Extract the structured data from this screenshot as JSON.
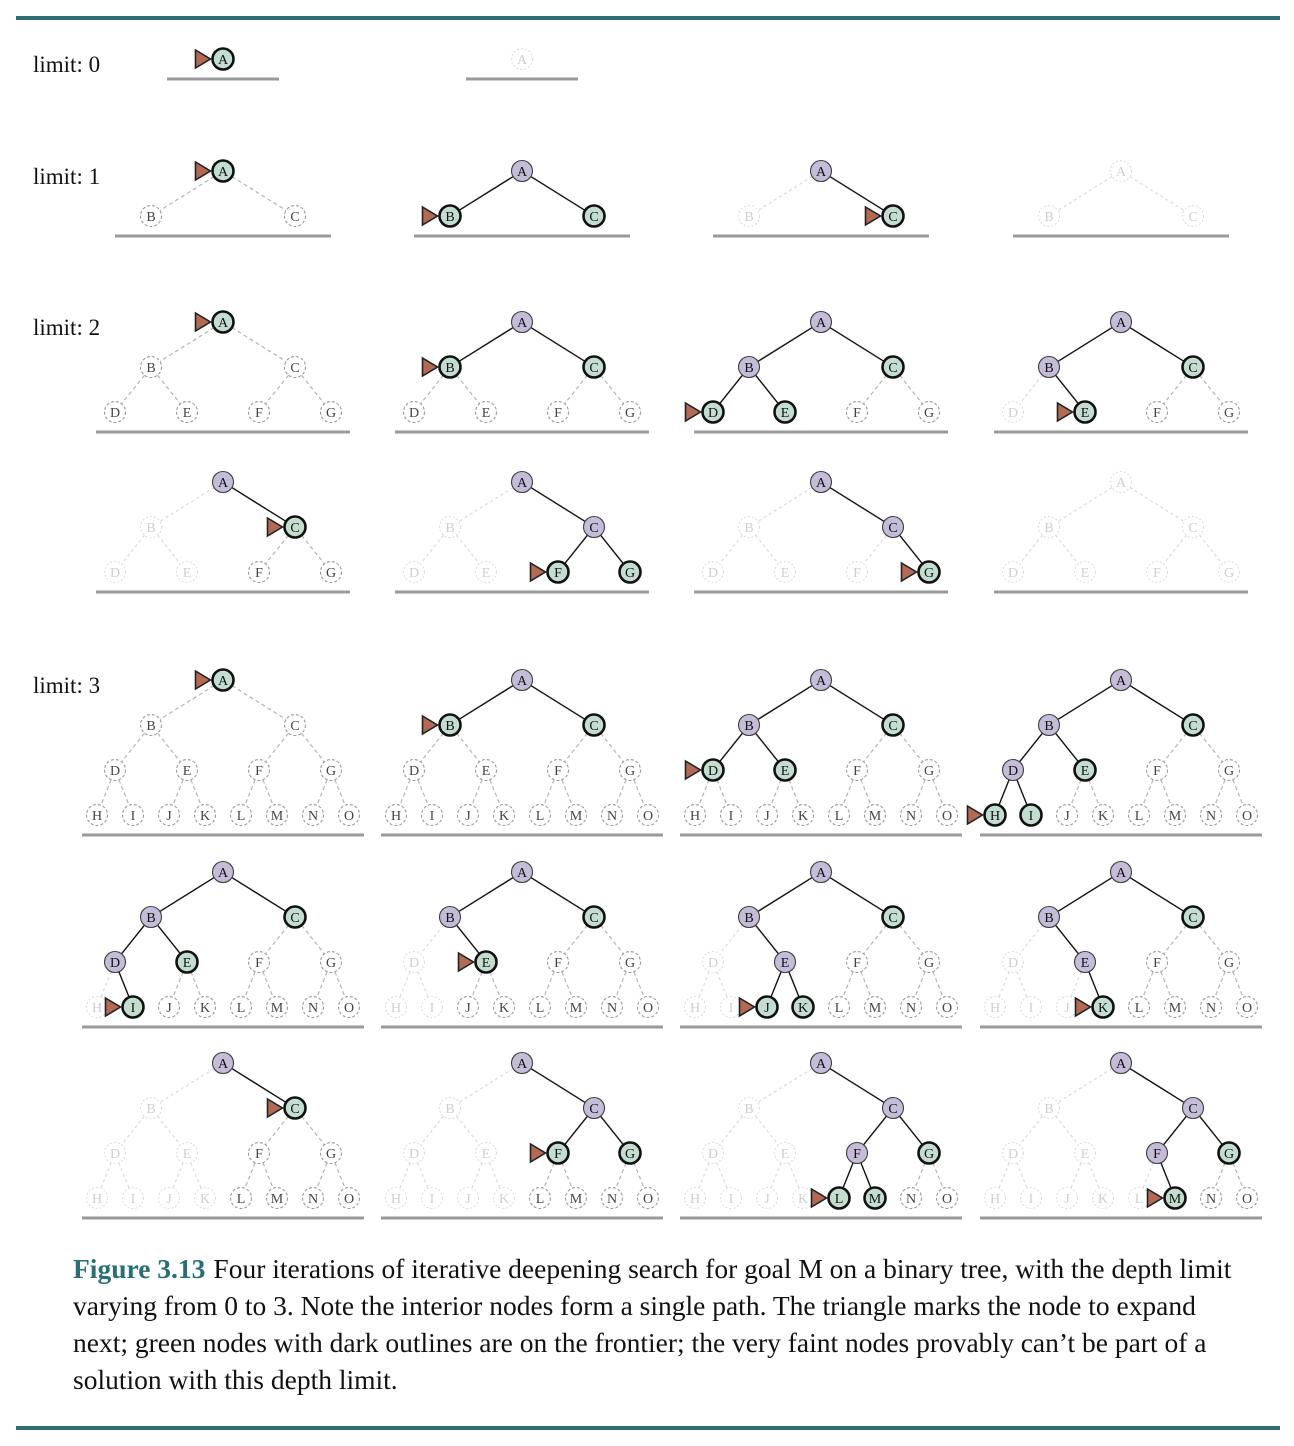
{
  "figure": {
    "number": "Figure 3.13",
    "caption": "Four iterations of iterative deepening search for goal M on a binary tree, with the depth limit varying from 0 to 3. Note the interior nodes form a single path. The triangle marks the node to expand next; green nodes with dark outlines are on the frontier; the very faint nodes provably can’t be part of a solution with this depth limit."
  },
  "colors": {
    "frontier_fill": "#c3ddd0",
    "expanded_fill": "#c4bcd8",
    "marker_fill": "#b26a55",
    "ground": "#999999",
    "rule": "#2f6e72",
    "caption_number": "#2a6f75"
  },
  "tree_labels": [
    "A",
    "B",
    "C",
    "D",
    "E",
    "F",
    "G",
    "H",
    "I",
    "J",
    "K",
    "L",
    "M",
    "N",
    "O"
  ],
  "rows": [
    {
      "label": "limit: 0",
      "depth": 0,
      "snapshots": [
        {
          "expanded": [],
          "frontier": [
            "A"
          ],
          "marker": "A",
          "pruned": []
        },
        {
          "expanded": [],
          "frontier": [],
          "marker": null,
          "pruned": [
            "A"
          ]
        }
      ]
    },
    {
      "label": "limit: 1",
      "depth": 1,
      "snapshots": [
        {
          "expanded": [],
          "frontier": [
            "A"
          ],
          "marker": "A",
          "pruned": []
        },
        {
          "expanded": [
            "A"
          ],
          "frontier": [
            "B",
            "C"
          ],
          "marker": "B",
          "pruned": []
        },
        {
          "expanded": [
            "A"
          ],
          "frontier": [
            "C"
          ],
          "marker": "C",
          "pruned": [
            "B"
          ]
        },
        {
          "expanded": [],
          "frontier": [],
          "marker": null,
          "pruned": [
            "A",
            "B",
            "C"
          ]
        }
      ]
    },
    {
      "label": "limit: 2",
      "depth": 2,
      "snapshots": [
        {
          "expanded": [],
          "frontier": [
            "A"
          ],
          "marker": "A",
          "pruned": []
        },
        {
          "expanded": [
            "A"
          ],
          "frontier": [
            "B",
            "C"
          ],
          "marker": "B",
          "pruned": []
        },
        {
          "expanded": [
            "A",
            "B"
          ],
          "frontier": [
            "C",
            "D",
            "E"
          ],
          "marker": "D",
          "pruned": []
        },
        {
          "expanded": [
            "A",
            "B"
          ],
          "frontier": [
            "C",
            "E"
          ],
          "marker": "E",
          "pruned": [
            "D"
          ]
        }
      ]
    },
    {
      "label": "",
      "depth": 2,
      "snapshots": [
        {
          "expanded": [
            "A"
          ],
          "frontier": [
            "C"
          ],
          "marker": "C",
          "pruned": [
            "B",
            "D",
            "E"
          ]
        },
        {
          "expanded": [
            "A",
            "C"
          ],
          "frontier": [
            "F",
            "G"
          ],
          "marker": "F",
          "pruned": [
            "B",
            "D",
            "E"
          ]
        },
        {
          "expanded": [
            "A",
            "C"
          ],
          "frontier": [
            "G"
          ],
          "marker": "G",
          "pruned": [
            "B",
            "D",
            "E",
            "F"
          ]
        },
        {
          "expanded": [],
          "frontier": [],
          "marker": null,
          "pruned": [
            "A",
            "B",
            "C",
            "D",
            "E",
            "F",
            "G"
          ]
        }
      ]
    },
    {
      "label": "limit: 3",
      "depth": 3,
      "snapshots": [
        {
          "expanded": [],
          "frontier": [
            "A"
          ],
          "marker": "A",
          "pruned": []
        },
        {
          "expanded": [
            "A"
          ],
          "frontier": [
            "B",
            "C"
          ],
          "marker": "B",
          "pruned": []
        },
        {
          "expanded": [
            "A",
            "B"
          ],
          "frontier": [
            "C",
            "D",
            "E"
          ],
          "marker": "D",
          "pruned": []
        },
        {
          "expanded": [
            "A",
            "B",
            "D"
          ],
          "frontier": [
            "C",
            "E",
            "H",
            "I"
          ],
          "marker": "H",
          "pruned": []
        }
      ]
    },
    {
      "label": "",
      "depth": 3,
      "snapshots": [
        {
          "expanded": [
            "A",
            "B",
            "D"
          ],
          "frontier": [
            "C",
            "E",
            "I"
          ],
          "marker": "I",
          "pruned": [
            "H"
          ]
        },
        {
          "expanded": [
            "A",
            "B"
          ],
          "frontier": [
            "C",
            "E"
          ],
          "marker": "E",
          "pruned": [
            "D",
            "H",
            "I"
          ]
        },
        {
          "expanded": [
            "A",
            "B",
            "E"
          ],
          "frontier": [
            "C",
            "J",
            "K"
          ],
          "marker": "J",
          "pruned": [
            "D",
            "H",
            "I"
          ]
        },
        {
          "expanded": [
            "A",
            "B",
            "E"
          ],
          "frontier": [
            "C",
            "K"
          ],
          "marker": "K",
          "pruned": [
            "D",
            "H",
            "I",
            "J"
          ]
        }
      ]
    },
    {
      "label": "",
      "depth": 3,
      "snapshots": [
        {
          "expanded": [
            "A"
          ],
          "frontier": [
            "C"
          ],
          "marker": "C",
          "pruned": [
            "B",
            "D",
            "E",
            "H",
            "I",
            "J",
            "K"
          ]
        },
        {
          "expanded": [
            "A",
            "C"
          ],
          "frontier": [
            "F",
            "G"
          ],
          "marker": "F",
          "pruned": [
            "B",
            "D",
            "E",
            "H",
            "I",
            "J",
            "K"
          ]
        },
        {
          "expanded": [
            "A",
            "C",
            "F"
          ],
          "frontier": [
            "G",
            "L",
            "M"
          ],
          "marker": "L",
          "pruned": [
            "B",
            "D",
            "E",
            "H",
            "I",
            "J",
            "K"
          ]
        },
        {
          "expanded": [
            "A",
            "C",
            "F"
          ],
          "frontier": [
            "G",
            "M"
          ],
          "marker": "M",
          "pruned": [
            "B",
            "D",
            "E",
            "H",
            "I",
            "J",
            "K",
            "L"
          ]
        }
      ]
    }
  ]
}
